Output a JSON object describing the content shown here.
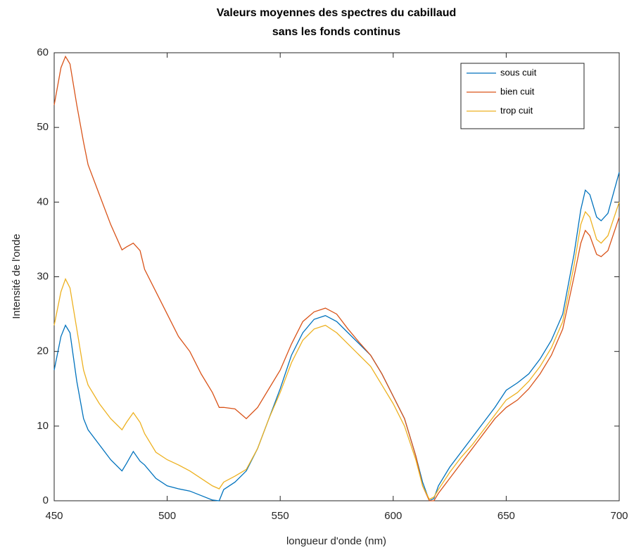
{
  "chart_data": {
    "type": "line",
    "title": [
      "Valeurs moyennes des spectres du cabillaud",
      "sans les fonds continus"
    ],
    "x_label": "longueur d'onde (nm)",
    "y_label": "Intensité de l'onde",
    "x": [
      450,
      453,
      455,
      457,
      460,
      463,
      465,
      470,
      475,
      480,
      482,
      485,
      488,
      490,
      495,
      500,
      505,
      510,
      515,
      520,
      523,
      525,
      530,
      535,
      540,
      545,
      550,
      555,
      560,
      565,
      570,
      575,
      580,
      585,
      590,
      595,
      600,
      605,
      610,
      613,
      616,
      618,
      620,
      625,
      630,
      635,
      640,
      645,
      650,
      655,
      660,
      665,
      670,
      675,
      680,
      683,
      685,
      687,
      690,
      692,
      695,
      700
    ],
    "series": [
      {
        "name": "sous cuit",
        "color": "#0072bd",
        "values": [
          17.5,
          22,
          23.5,
          22.5,
          16,
          11,
          9.5,
          7.5,
          5.5,
          4,
          5,
          6.6,
          5.3,
          4.8,
          3,
          2,
          1.6,
          1.3,
          0.7,
          0.1,
          0,
          1.5,
          2.5,
          4,
          7,
          11,
          15,
          19.5,
          22.5,
          24.3,
          24.8,
          24,
          22.5,
          21,
          19.5,
          17,
          14,
          11,
          6,
          2.5,
          0,
          0.3,
          2,
          4.5,
          6.5,
          8.5,
          10.5,
          12.5,
          14.8,
          15.8,
          17,
          19,
          21.5,
          25,
          33,
          39,
          41.6,
          41,
          38,
          37.5,
          38.5,
          44
        ]
      },
      {
        "name": "bien cuit",
        "color": "#d95319",
        "values": [
          53,
          58,
          59.5,
          58.5,
          53,
          48,
          45,
          41,
          37,
          33.6,
          34,
          34.5,
          33.5,
          31,
          28,
          25,
          22,
          20,
          17,
          14.5,
          12.5,
          12.5,
          12.3,
          11,
          12.5,
          15,
          17.5,
          21,
          24,
          25.3,
          25.8,
          25,
          23,
          21.2,
          19.5,
          17,
          14,
          11,
          6,
          2,
          0,
          0,
          1,
          3,
          5,
          7,
          9,
          11,
          12.5,
          13.5,
          15,
          17,
          19.5,
          23,
          30,
          34.5,
          36.2,
          35.5,
          33,
          32.7,
          33.5,
          38
        ]
      },
      {
        "name": "trop cuit",
        "color": "#edb120",
        "values": [
          23.5,
          28,
          29.7,
          28.5,
          23,
          17.5,
          15.5,
          13,
          11,
          9.5,
          10.5,
          11.8,
          10.5,
          9,
          6.5,
          5.5,
          4.8,
          4,
          3,
          2,
          1.6,
          2.5,
          3.3,
          4.2,
          7,
          11,
          14.5,
          18.5,
          21.5,
          23,
          23.5,
          22.5,
          21,
          19.5,
          18,
          15.5,
          13,
          10,
          5.5,
          2,
          0.2,
          0.5,
          1.5,
          3.8,
          5.8,
          7.5,
          9.5,
          11.5,
          13.5,
          14.5,
          16,
          18,
          20.5,
          24,
          31.5,
          37,
          38.7,
          38,
          35,
          34.5,
          35.5,
          40
        ]
      }
    ],
    "xlim": [
      450,
      700
    ],
    "xticks": [
      450,
      500,
      550,
      600,
      650,
      700
    ],
    "ylim": [
      0,
      60
    ],
    "yticks": [
      0,
      10,
      20,
      30,
      40,
      50,
      60
    ],
    "grid": false,
    "legend": "top-right"
  }
}
